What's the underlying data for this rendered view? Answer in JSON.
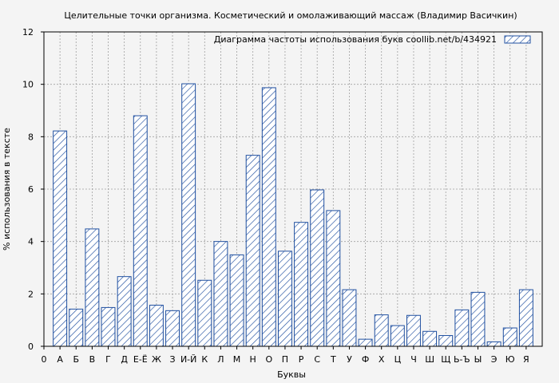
{
  "chart_data": {
    "type": "bar",
    "title": "Целительные точки организма. Косметический и омолаживающий массаж (Владимир Васичкин)",
    "xlabel": "Буквы",
    "ylabel": "% использования в тексте",
    "legend": "Диаграмма частоты использования букв  coollib.net/b/434921",
    "legend_position": "top-right",
    "ylim": [
      0,
      12
    ],
    "yticks": [
      "0",
      "2",
      "4",
      "6",
      "8",
      "10",
      "12"
    ],
    "grid": true,
    "categories": [
      "0",
      "А",
      "Б",
      "В",
      "Г",
      "Д",
      "Е-Ё",
      "Ж",
      "З",
      "И-Й",
      "К",
      "Л",
      "М",
      "Н",
      "О",
      "П",
      "Р",
      "С",
      "Т",
      "У",
      "Ф",
      "Х",
      "Ц",
      "Ч",
      "Ш",
      "Щ",
      "Ь-Ъ",
      "Ы",
      "Э",
      "Ю",
      "Я"
    ],
    "values": [
      0,
      8.22,
      1.42,
      4.48,
      1.48,
      2.66,
      8.8,
      1.57,
      1.36,
      10.02,
      2.52,
      4.0,
      3.49,
      7.29,
      9.87,
      3.63,
      4.73,
      5.97,
      5.18,
      2.16,
      0.27,
      1.2,
      0.79,
      1.18,
      0.57,
      0.41,
      1.39,
      2.06,
      0.17,
      0.7,
      2.16
    ],
    "colors": {
      "bar_stroke": "#1f4fa0",
      "background": "#f4f4f4",
      "grid": "#a0a0a0"
    }
  }
}
